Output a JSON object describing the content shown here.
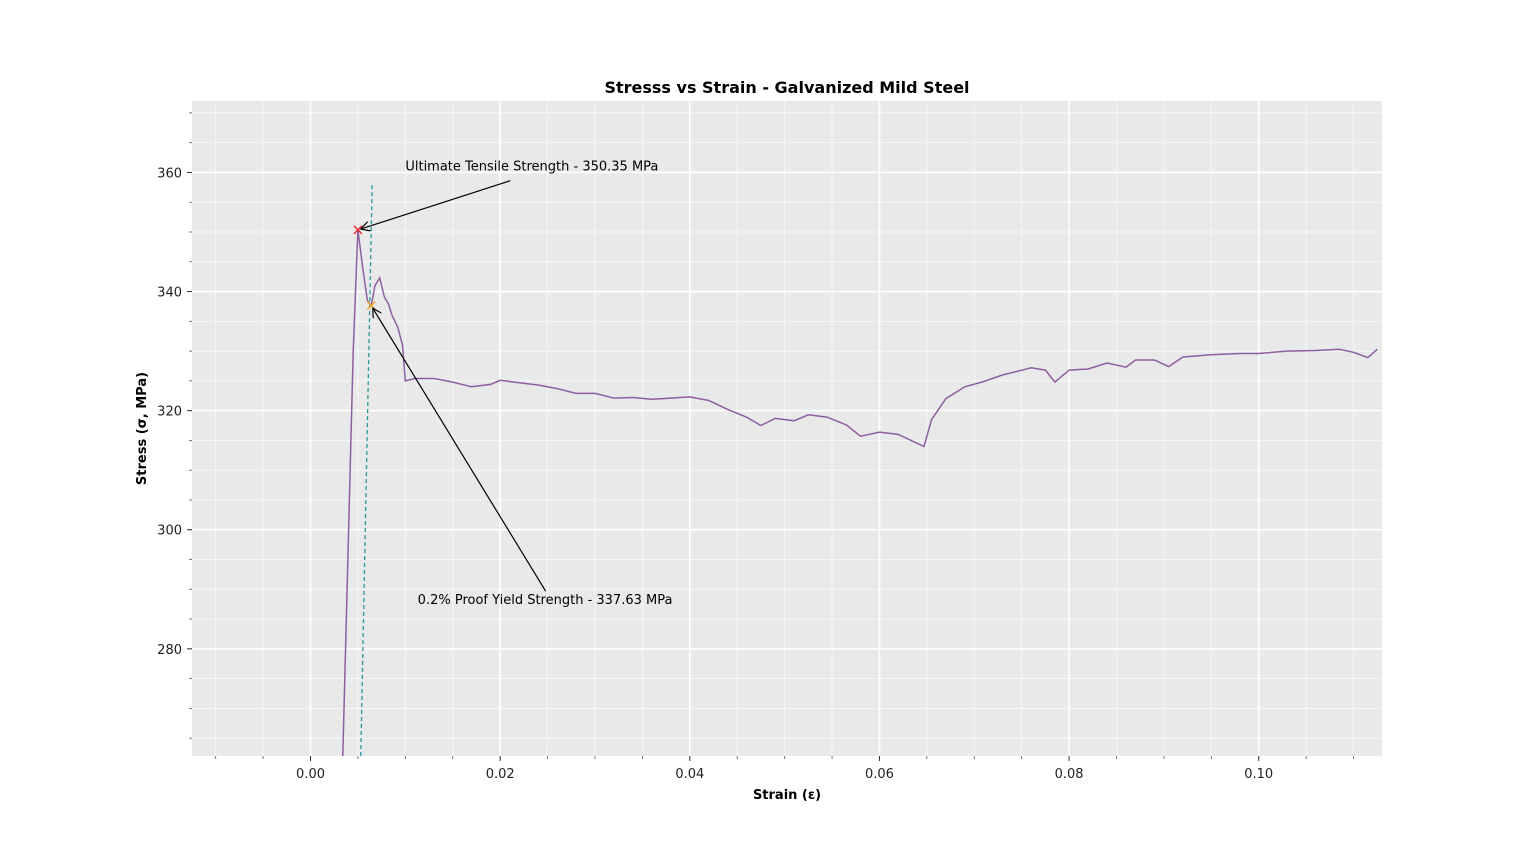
{
  "chart_data": {
    "type": "line",
    "title": "Stresss vs Strain - Galvanized Mild Steel",
    "xlabel": "Strain (ε)",
    "ylabel": "Stress (σ, MPa)",
    "xlim": [
      -0.0125,
      0.113
    ],
    "ylim": [
      262,
      372
    ],
    "x_ticks": [
      0.0,
      0.02,
      0.04,
      0.06,
      0.08,
      0.1
    ],
    "x_tick_labels": [
      "0.00",
      "0.02",
      "0.04",
      "0.06",
      "0.08",
      "0.10"
    ],
    "x_minor_step": 0.005,
    "y_ticks": [
      280,
      300,
      320,
      340,
      360
    ],
    "y_tick_labels": [
      "280",
      "300",
      "320",
      "340",
      "360"
    ],
    "y_minor_step": 5,
    "grid": true,
    "colors": {
      "background": "#e9e9e9",
      "curve": "#8e5ea2",
      "offset_line": "#239999",
      "uts_marker": "#e8202a",
      "yield_marker": "#f5a623"
    },
    "series": [
      {
        "values": [
          [
            0.0034,
            262
          ],
          [
            0.0045,
            330
          ],
          [
            0.005,
            350.35
          ],
          [
            0.0055,
            344
          ],
          [
            0.006,
            338.5
          ],
          [
            0.0064,
            337.63
          ],
          [
            0.0068,
            341
          ],
          [
            0.0073,
            342.3
          ],
          [
            0.0078,
            339
          ],
          [
            0.0082,
            338
          ],
          [
            0.0086,
            336
          ],
          [
            0.0092,
            334
          ],
          [
            0.0097,
            331
          ],
          [
            0.01,
            325
          ],
          [
            0.011,
            325.4
          ],
          [
            0.013,
            325.4
          ],
          [
            0.015,
            324.8
          ],
          [
            0.017,
            324.0
          ],
          [
            0.019,
            324.4
          ],
          [
            0.02,
            325.1
          ],
          [
            0.022,
            324.7
          ],
          [
            0.024,
            324.3
          ],
          [
            0.026,
            323.7
          ],
          [
            0.028,
            322.9
          ],
          [
            0.03,
            322.9
          ],
          [
            0.032,
            322.1
          ],
          [
            0.034,
            322.2
          ],
          [
            0.036,
            321.9
          ],
          [
            0.038,
            322.1
          ],
          [
            0.04,
            322.3
          ],
          [
            0.042,
            321.7
          ],
          [
            0.044,
            320.2
          ],
          [
            0.046,
            318.9
          ],
          [
            0.0475,
            317.5
          ],
          [
            0.049,
            318.7
          ],
          [
            0.051,
            318.3
          ],
          [
            0.0525,
            319.3
          ],
          [
            0.0545,
            318.9
          ],
          [
            0.0565,
            317.6
          ],
          [
            0.058,
            315.7
          ],
          [
            0.06,
            316.4
          ],
          [
            0.062,
            316.0
          ],
          [
            0.064,
            314.5
          ],
          [
            0.0647,
            314.0
          ],
          [
            0.0655,
            318.5
          ],
          [
            0.067,
            322.0
          ],
          [
            0.069,
            324.0
          ],
          [
            0.071,
            324.9
          ],
          [
            0.073,
            326.0
          ],
          [
            0.076,
            327.2
          ],
          [
            0.0775,
            326.8
          ],
          [
            0.0785,
            324.8
          ],
          [
            0.08,
            326.8
          ],
          [
            0.082,
            327.0
          ],
          [
            0.084,
            328.0
          ],
          [
            0.086,
            327.3
          ],
          [
            0.087,
            328.5
          ],
          [
            0.089,
            328.5
          ],
          [
            0.0905,
            327.4
          ],
          [
            0.092,
            329.0
          ],
          [
            0.095,
            329.4
          ],
          [
            0.098,
            329.6
          ],
          [
            0.1,
            329.6
          ],
          [
            0.103,
            330.0
          ],
          [
            0.106,
            330.1
          ],
          [
            0.1085,
            330.3
          ],
          [
            0.11,
            329.8
          ],
          [
            0.1115,
            328.9
          ],
          [
            0.1125,
            330.3
          ]
        ]
      }
    ],
    "offset_line": {
      "x": [
        0.0053,
        0.0065
      ],
      "y": [
        262,
        358
      ]
    },
    "annotations": [
      {
        "text": "Ultimate Tensile Strength - 350.35 MPa",
        "point": [
          0.005,
          350.35
        ],
        "text_at": [
          0.01,
          360.3
        ],
        "marker": "x"
      },
      {
        "text": "0.2% Proof Yield Strength - 337.63 MPa",
        "point": [
          0.0064,
          337.63
        ],
        "text_at": [
          0.0113,
          287.5
        ],
        "marker": "x"
      }
    ]
  }
}
